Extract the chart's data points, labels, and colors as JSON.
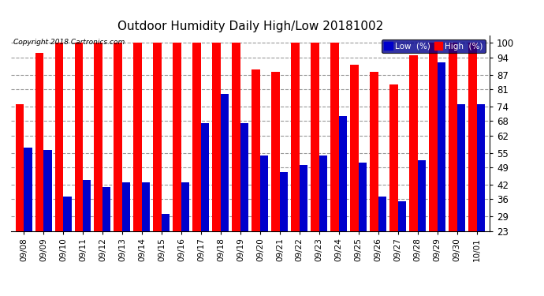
{
  "title": "Outdoor Humidity Daily High/Low 20181002",
  "copyright": "Copyright 2018 Cartronics.com",
  "dates": [
    "09/08",
    "09/09",
    "09/10",
    "09/11",
    "09/12",
    "09/13",
    "09/14",
    "09/15",
    "09/16",
    "09/17",
    "09/18",
    "09/19",
    "09/20",
    "09/21",
    "09/22",
    "09/23",
    "09/24",
    "09/25",
    "09/26",
    "09/27",
    "09/28",
    "09/29",
    "09/30",
    "10/01"
  ],
  "high": [
    75,
    96,
    100,
    100,
    100,
    100,
    100,
    100,
    100,
    100,
    100,
    100,
    89,
    88,
    100,
    100,
    100,
    91,
    88,
    83,
    95,
    100,
    100,
    100
  ],
  "low": [
    57,
    56,
    37,
    44,
    41,
    43,
    43,
    30,
    43,
    67,
    79,
    67,
    54,
    47,
    50,
    54,
    70,
    51,
    37,
    35,
    52,
    92,
    75,
    75
  ],
  "high_color": "#ff0000",
  "low_color": "#0000cc",
  "bg_color": "#ffffff",
  "grid_color": "#999999",
  "title_fontsize": 11,
  "ylabel_ticks": [
    23,
    29,
    36,
    42,
    49,
    55,
    62,
    68,
    74,
    81,
    87,
    94,
    100
  ],
  "ylim": [
    23,
    103
  ],
  "bar_width": 0.42
}
